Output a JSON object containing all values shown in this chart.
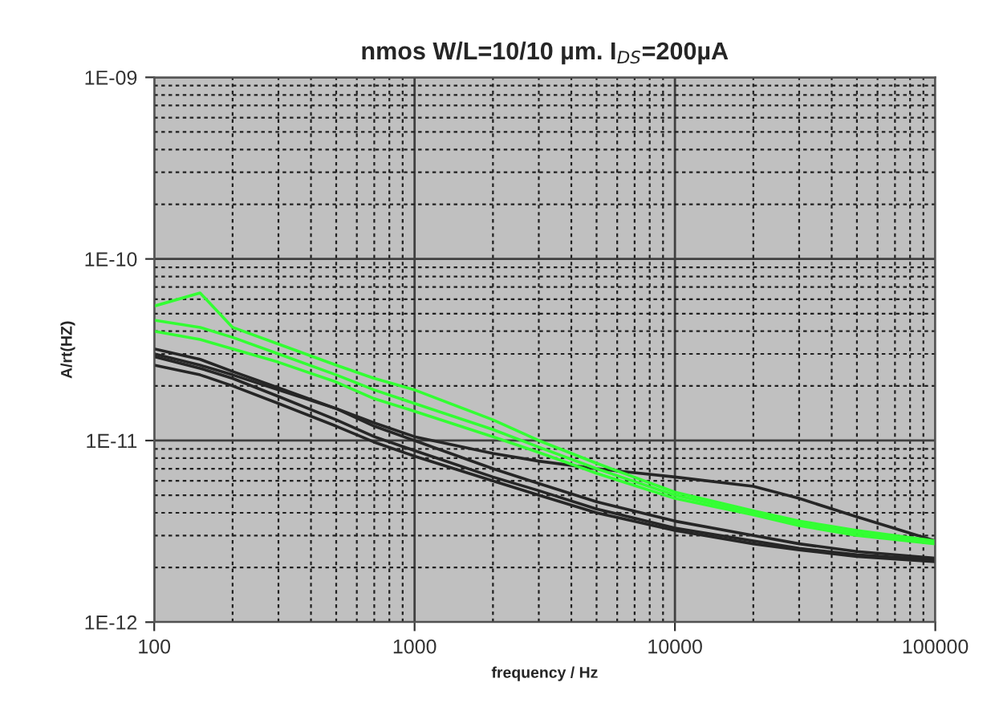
{
  "chart_data": {
    "type": "line",
    "title": "nmos W/L=10/10 µm. I$_{DS}$=200µA",
    "xlabel": "frequency / Hz",
    "ylabel": "A/rt(HZ)",
    "log": "xy",
    "grid": true,
    "marker": "none",
    "line_style": "solid",
    "x": [
      100,
      150,
      200,
      300,
      500,
      700,
      1000,
      2000,
      3000,
      5000,
      10000,
      20000,
      30000,
      50000,
      100000
    ],
    "xlim": [
      100,
      100000
    ],
    "xticks": [
      100,
      1000,
      10000,
      100000
    ],
    "ylim": [
      1e-12,
      1e-09
    ],
    "yticks": [
      {
        "value": 1e-12,
        "label": "1E-12"
      },
      {
        "value": 1e-11,
        "label": "1E-11"
      },
      {
        "value": 1e-10,
        "label": "1E-10"
      },
      {
        "value": 1e-09,
        "label": "1E-09"
      }
    ],
    "series": [
      {
        "color": "#262626",
        "values": [
          3.2e-11,
          2.8e-11,
          2.4e-11,
          1.95e-11,
          1.5e-11,
          1.2e-11,
          1e-11,
          7e-12,
          5.8e-12,
          4.6e-12,
          3.6e-12,
          3e-12,
          2.7e-12,
          2.45e-12,
          2.25e-12
        ]
      },
      {
        "color": "#262626",
        "values": [
          2.9e-11,
          2.5e-11,
          2.2e-11,
          1.75e-11,
          1.3e-11,
          1.05e-11,
          8.8e-12,
          6.3e-12,
          5.3e-12,
          4.2e-12,
          3.3e-12,
          2.8e-12,
          2.55e-12,
          2.35e-12,
          2.2e-12
        ]
      },
      {
        "color": "#262626",
        "values": [
          2.6e-11,
          2.3e-11,
          2e-11,
          1.6e-11,
          1.2e-11,
          9.8e-12,
          8.2e-12,
          6e-12,
          5e-12,
          4e-12,
          3.2e-12,
          2.7e-12,
          2.5e-12,
          2.3e-12,
          2.15e-12
        ]
      },
      {
        "color": "#262626",
        "values": [
          3e-11,
          2.6e-11,
          2.3e-11,
          1.9e-11,
          1.5e-11,
          1.25e-11,
          1.05e-11,
          8.5e-12,
          7.7e-12,
          7e-12,
          6.3e-12,
          5.6e-12,
          4.8e-12,
          3.8e-12,
          2.8e-12
        ]
      },
      {
        "color": "#33ff33",
        "values": [
          5.5e-11,
          6.5e-11,
          4.2e-11,
          3.4e-11,
          2.6e-11,
          2.2e-11,
          1.9e-11,
          1.3e-11,
          1e-11,
          7.5e-12,
          5.2e-12,
          4.1e-12,
          3.6e-12,
          3.2e-12,
          2.8e-12
        ]
      },
      {
        "color": "#33ff33",
        "values": [
          4.6e-11,
          4.2e-11,
          3.7e-11,
          3e-11,
          2.3e-11,
          1.9e-11,
          1.6e-11,
          1.15e-11,
          9.2e-12,
          7e-12,
          5e-12,
          4e-12,
          3.5e-12,
          3.1e-12,
          2.75e-12
        ]
      },
      {
        "color": "#33ff33",
        "values": [
          4e-11,
          3.6e-11,
          3.2e-11,
          2.7e-11,
          2.1e-11,
          1.7e-11,
          1.45e-11,
          1.05e-11,
          8.6e-12,
          6.6e-12,
          4.8e-12,
          3.9e-12,
          3.4e-12,
          3e-12,
          2.7e-12
        ]
      }
    ]
  }
}
